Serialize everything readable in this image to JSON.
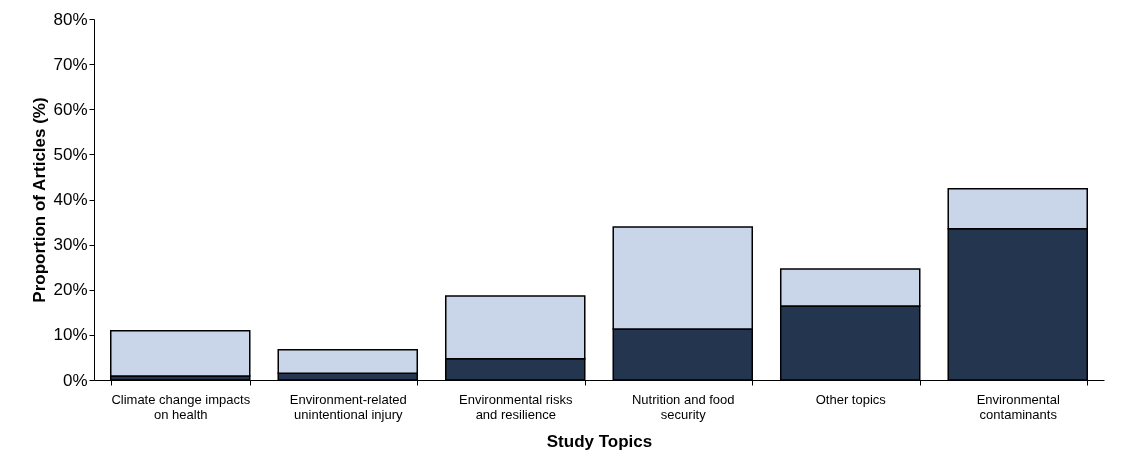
{
  "chart_data": {
    "type": "bar",
    "stacked": true,
    "xlabel": "Study Topics",
    "ylabel": "Proportion of Articles  (%)",
    "categories": [
      "Climate change impacts on health",
      "Environment-related unintentional injury",
      "Environmental risks and resilience",
      "Nutrition and food security",
      "Other topics",
      "Environmental contaminants"
    ],
    "series": [
      {
        "color": "#243550",
        "values": [
          0.9,
          1.5,
          4.7,
          11.3,
          16.4,
          33.5
        ]
      },
      {
        "color": "#c9d5e8",
        "values": [
          10.0,
          5.2,
          13.9,
          22.6,
          8.2,
          8.9
        ]
      }
    ],
    "ylim": [
      0,
      80
    ],
    "yticks": [
      {
        "value": 0,
        "label": "0%"
      },
      {
        "value": 10,
        "label": "10%"
      },
      {
        "value": 20,
        "label": "20%"
      },
      {
        "value": 30,
        "label": "30%"
      },
      {
        "value": 40,
        "label": "40%"
      },
      {
        "value": 50,
        "label": "50%"
      },
      {
        "value": 60,
        "label": "60%"
      },
      {
        "value": 70,
        "label": "70%"
      },
      {
        "value": 80,
        "label": "80%"
      }
    ],
    "grid": false
  }
}
